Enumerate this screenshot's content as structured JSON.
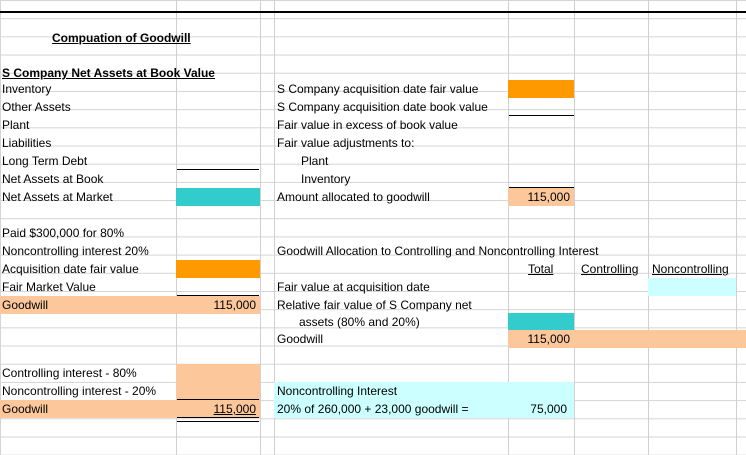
{
  "colors": {
    "orange": "#ff9900",
    "peach": "#fcc89b",
    "teal": "#33cccc",
    "light_cyan": "#ccffff",
    "gridline": "#d4d4d4"
  },
  "title": "Compuation of Goodwill",
  "left": {
    "net_assets_header": "S Company Net Assets at Book Value",
    "inventory": "Inventory",
    "other_assets": "Other Assets",
    "plant": "Plant",
    "liabilities": "Liabilities",
    "long_term_debt": "Long Term Debt",
    "net_assets_book": "Net Assets at Book",
    "net_assets_market": "Net Assets at Market",
    "paid": "Paid $300,000 for 80%",
    "nci": "Noncontrolling interest 20%",
    "acq_fair_value": "Acquisition date fair value",
    "fair_market_value": "Fair Market Value",
    "goodwill": "Goodwill",
    "goodwill_value": "115,000",
    "controlling_interest": "Controlling interest - 80%",
    "noncontrolling_interest": "Noncontrolling interest - 20%",
    "goodwill2": "Goodwill",
    "goodwill2_value": "115,000"
  },
  "right": {
    "acq_date_fair_value": "S Company acquisition date fair value",
    "acq_date_book_value": "S Company acquisition date book value",
    "fv_excess": "Fair value in excess of book value",
    "fv_adjustments": "Fair value adjustments to:",
    "plant": "Plant",
    "inventory": "Inventory",
    "amount_allocated": "Amount allocated to goodwill",
    "amount_allocated_value": "115,000",
    "allocation_header": "Goodwill Allocation to Controlling and Noncontrolling Interest",
    "col_total": "Total",
    "col_controlling": "Controlling",
    "col_noncontrolling": "Noncontrolling",
    "fv_at_acquisition": "Fair value at acquisition date",
    "relative_fv_1": "Relative fair value of S Company net",
    "relative_fv_2": "assets (80% and 20%)",
    "goodwill": "Goodwill",
    "goodwill_total": "115,000",
    "nci_header": "Noncontrolling Interest",
    "nci_calc": "20% of 260,000 + 23,000 goodwill =",
    "nci_value": "75,000"
  }
}
